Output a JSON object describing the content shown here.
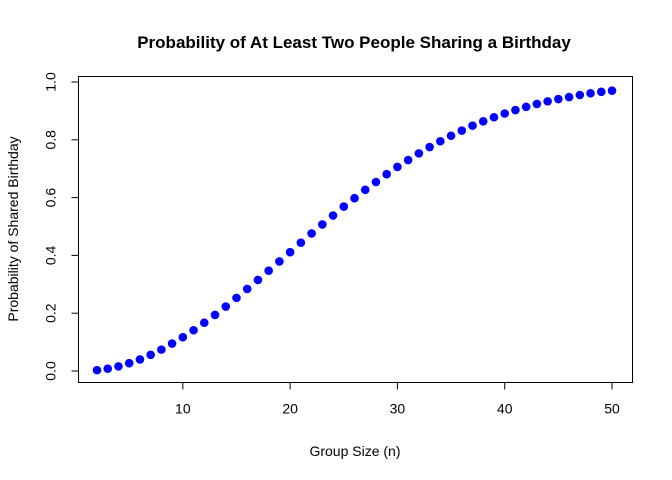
{
  "chart_data": {
    "type": "scatter",
    "title": "Probability of At Least Two People Sharing a Birthday",
    "xlabel": "Group Size (n)",
    "ylabel": "Probability of Shared Birthday",
    "xlim": [
      2,
      50
    ],
    "ylim": [
      0,
      1
    ],
    "xticks": [
      10,
      20,
      30,
      40,
      50
    ],
    "yticks": [
      0.0,
      0.2,
      0.4,
      0.6,
      0.8,
      1.0
    ],
    "xtick_labels": [
      "10",
      "20",
      "30",
      "40",
      "50"
    ],
    "ytick_labels": [
      "0.0",
      "0.2",
      "0.4",
      "0.6",
      "0.8",
      "1.0"
    ],
    "grid": false,
    "point_color": "#0000ff",
    "series": [
      {
        "x": [
          2,
          3,
          4,
          5,
          6,
          7,
          8,
          9,
          10,
          11,
          12,
          13,
          14,
          15,
          16,
          17,
          18,
          19,
          20,
          21,
          22,
          23,
          24,
          25,
          26,
          27,
          28,
          29,
          30,
          31,
          32,
          33,
          34,
          35,
          36,
          37,
          38,
          39,
          40,
          41,
          42,
          43,
          44,
          45,
          46,
          47,
          48,
          49,
          50
        ],
        "values": [
          0.003,
          0.008,
          0.016,
          0.027,
          0.04,
          0.056,
          0.074,
          0.095,
          0.117,
          0.141,
          0.167,
          0.194,
          0.223,
          0.253,
          0.284,
          0.315,
          0.347,
          0.379,
          0.411,
          0.444,
          0.476,
          0.507,
          0.538,
          0.569,
          0.598,
          0.627,
          0.654,
          0.681,
          0.706,
          0.73,
          0.753,
          0.775,
          0.795,
          0.814,
          0.832,
          0.849,
          0.864,
          0.878,
          0.891,
          0.903,
          0.914,
          0.924,
          0.933,
          0.941,
          0.948,
          0.955,
          0.961,
          0.966,
          0.97
        ]
      }
    ]
  }
}
